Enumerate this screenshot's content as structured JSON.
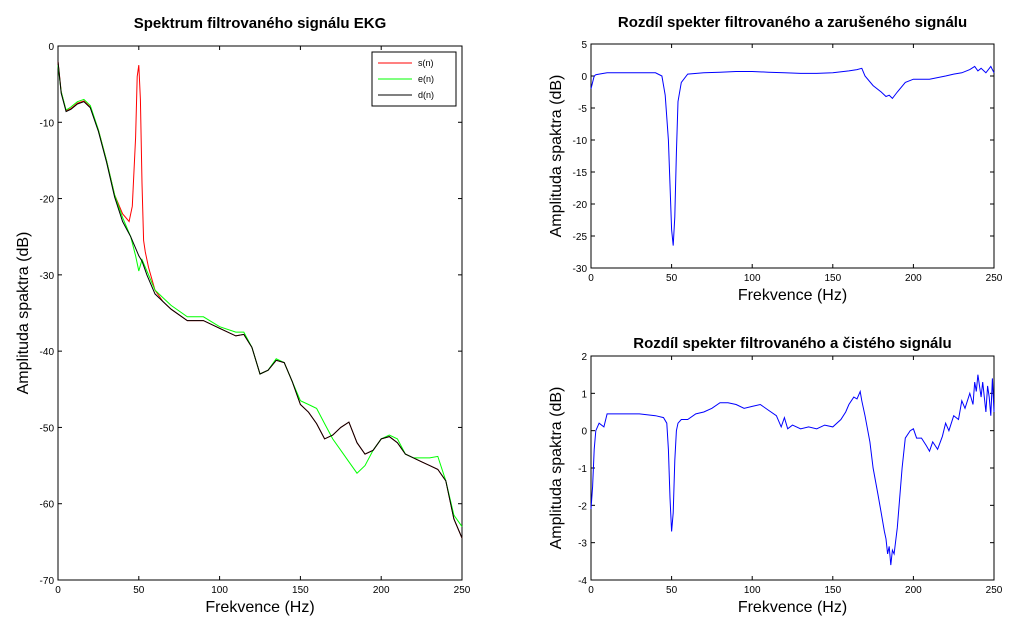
{
  "chart_data": [
    {
      "type": "line",
      "title": "Spektrum filtrovaného signálu EKG",
      "xlabel": "Frekvence (Hz)",
      "ylabel": "Amplituda spaktra (dB)",
      "xlim": [
        0,
        250
      ],
      "ylim": [
        -70,
        0
      ],
      "xticks": [
        0,
        50,
        100,
        150,
        200,
        250
      ],
      "yticks": [
        0,
        -10,
        -20,
        -30,
        -40,
        -50,
        -60,
        -70
      ],
      "grid": false,
      "legend": "top-right",
      "series": [
        {
          "name": "s(n)",
          "color": "#ff0000",
          "x": [
            0,
            2,
            5,
            8,
            12,
            16,
            20,
            25,
            30,
            35,
            40,
            44,
            46,
            48,
            49,
            50,
            51,
            52,
            53,
            54,
            56,
            60,
            65,
            70,
            80,
            90,
            100,
            110,
            115,
            120,
            125,
            130,
            135,
            140,
            145,
            150,
            155,
            160,
            165,
            170,
            175,
            180,
            185,
            190,
            195,
            200,
            205,
            210,
            215,
            220,
            225,
            230,
            235,
            240,
            245,
            250
          ],
          "values": [
            -2,
            -6,
            -8.5,
            -8.2,
            -7.5,
            -7.2,
            -8,
            -11,
            -15,
            -19.5,
            -22,
            -23,
            -21,
            -12,
            -4,
            -2.5,
            -7,
            -18,
            -25.5,
            -27,
            -29,
            -32,
            -33.5,
            -34.5,
            -36,
            -36,
            -37,
            -38,
            -37.8,
            -39.5,
            -43,
            -42.5,
            -41.2,
            -41.5,
            -44,
            -47,
            -48,
            -49.5,
            -51.5,
            -51,
            -50,
            -49.3,
            -52,
            -53.5,
            -53,
            -51.5,
            -51.2,
            -52,
            -53.5,
            -54,
            -54.5,
            -55,
            -55.5,
            -57,
            -62,
            -64.5
          ]
        },
        {
          "name": "e(n)",
          "color": "#00ff00",
          "x": [
            0,
            2,
            5,
            8,
            12,
            16,
            20,
            25,
            30,
            35,
            40,
            45,
            48,
            50,
            52,
            55,
            60,
            65,
            70,
            80,
            90,
            100,
            110,
            115,
            120,
            125,
            130,
            135,
            140,
            145,
            150,
            155,
            160,
            165,
            170,
            175,
            180,
            185,
            190,
            195,
            200,
            205,
            210,
            215,
            220,
            225,
            230,
            235,
            240,
            245,
            250
          ],
          "values": [
            -2.5,
            -6,
            -8.4,
            -8,
            -7.3,
            -7,
            -7.8,
            -11,
            -15,
            -19.5,
            -22.5,
            -25,
            -27.5,
            -29.5,
            -28,
            -29.5,
            -32,
            -33,
            -34,
            -35.5,
            -35.5,
            -36.8,
            -37.5,
            -37.5,
            -39.5,
            -43,
            -42.5,
            -41,
            -41.5,
            -44,
            -46.5,
            -47,
            -47.5,
            -49.5,
            -51.5,
            -53,
            -54.5,
            -56,
            -55,
            -53,
            -51.5,
            -51,
            -51.5,
            -53.5,
            -54,
            -54,
            -54,
            -53.8,
            -57,
            -61.5,
            -63
          ]
        },
        {
          "name": "d(n)",
          "color": "#000000",
          "x": [
            0,
            2,
            5,
            8,
            12,
            16,
            20,
            25,
            30,
            35,
            40,
            45,
            48,
            50,
            52,
            55,
            60,
            65,
            70,
            80,
            90,
            100,
            110,
            115,
            120,
            125,
            130,
            135,
            140,
            145,
            150,
            155,
            160,
            165,
            170,
            175,
            180,
            185,
            190,
            195,
            200,
            205,
            210,
            215,
            220,
            225,
            230,
            235,
            240,
            245,
            250
          ],
          "values": [
            -2,
            -6.2,
            -8.6,
            -8.3,
            -7.6,
            -7.3,
            -8.1,
            -11.2,
            -15.2,
            -19.8,
            -23,
            -25,
            -26.5,
            -27.5,
            -28.2,
            -30,
            -32.5,
            -33.5,
            -34.5,
            -36,
            -36,
            -37,
            -38,
            -37.8,
            -39.5,
            -43,
            -42.5,
            -41.2,
            -41.5,
            -44,
            -47,
            -48,
            -49.5,
            -51.5,
            -51,
            -50,
            -49.3,
            -52,
            -53.5,
            -53,
            -51.5,
            -51.2,
            -52,
            -53.5,
            -54,
            -54.5,
            -55,
            -55.5,
            -57,
            -62,
            -64.5
          ]
        }
      ]
    },
    {
      "type": "line",
      "title": "Rozdíl spekter filtrovaného a zarušeného signálu",
      "xlabel": "Frekvence (Hz)",
      "ylabel": "Amplituda spaktra (dB)",
      "xlim": [
        0,
        250
      ],
      "ylim": [
        -30,
        5
      ],
      "xticks": [
        0,
        50,
        100,
        150,
        200,
        250
      ],
      "yticks": [
        5,
        0,
        -5,
        -10,
        -15,
        -20,
        -25,
        -30
      ],
      "grid": false,
      "series": [
        {
          "color": "#0000ff",
          "x": [
            0,
            1,
            2,
            3,
            5,
            10,
            20,
            30,
            40,
            44,
            46,
            48,
            49,
            50,
            51,
            52,
            53,
            54,
            56,
            60,
            70,
            80,
            90,
            100,
            110,
            120,
            130,
            140,
            150,
            160,
            165,
            168,
            170,
            175,
            180,
            183,
            185,
            187,
            190,
            195,
            200,
            210,
            220,
            225,
            230,
            235,
            238,
            240,
            242,
            245,
            248,
            250
          ],
          "values": [
            -2,
            -1,
            0,
            0.2,
            0.3,
            0.5,
            0.5,
            0.5,
            0.5,
            0,
            -3,
            -10,
            -17,
            -24,
            -26.5,
            -22,
            -12,
            -4,
            -1,
            0.3,
            0.5,
            0.6,
            0.7,
            0.7,
            0.6,
            0.5,
            0.4,
            0.4,
            0.5,
            0.8,
            1,
            1.2,
            0,
            -1.5,
            -2.5,
            -3.2,
            -3,
            -3.5,
            -2.5,
            -1,
            -0.5,
            -0.5,
            0,
            0.3,
            0.5,
            1,
            1.5,
            0.8,
            1.2,
            0.5,
            1.5,
            0.5
          ]
        }
      ]
    },
    {
      "type": "line",
      "title": "Rozdíl spekter filtrovaného a čistého signálu",
      "xlabel": "Frekvence (Hz)",
      "ylabel": "Amplituda spaktra (dB)",
      "xlim": [
        0,
        250
      ],
      "ylim": [
        -4,
        2
      ],
      "xticks": [
        0,
        50,
        100,
        150,
        200,
        250
      ],
      "yticks": [
        2,
        1,
        0,
        -1,
        -2,
        -3,
        -4
      ],
      "grid": false,
      "series": [
        {
          "color": "#0000ff",
          "x": [
            0,
            1,
            2,
            3,
            5,
            8,
            10,
            20,
            30,
            40,
            45,
            47,
            48,
            49,
            50,
            51,
            52,
            53,
            54,
            56,
            60,
            65,
            70,
            75,
            80,
            85,
            90,
            95,
            100,
            105,
            110,
            115,
            118,
            120,
            122,
            125,
            130,
            135,
            140,
            145,
            150,
            155,
            158,
            160,
            163,
            165,
            167,
            168,
            170,
            173,
            175,
            178,
            180,
            182,
            183,
            184,
            185,
            186,
            187,
            188,
            190,
            193,
            195,
            198,
            200,
            202,
            205,
            208,
            210,
            212,
            215,
            218,
            220,
            222,
            225,
            228,
            230,
            232,
            235,
            237,
            238,
            239,
            240,
            241,
            242,
            243,
            245,
            246,
            247,
            248,
            249,
            250
          ],
          "values": [
            -2.1,
            -1.5,
            -0.5,
            0,
            0.2,
            0.1,
            0.45,
            0.45,
            0.45,
            0.4,
            0.35,
            0.2,
            -0.5,
            -1.8,
            -2.7,
            -2.2,
            -0.8,
            0,
            0.2,
            0.3,
            0.3,
            0.45,
            0.5,
            0.6,
            0.75,
            0.75,
            0.7,
            0.6,
            0.65,
            0.7,
            0.55,
            0.4,
            0.1,
            0.35,
            0.05,
            0.15,
            0.05,
            0.1,
            0.05,
            0.15,
            0.1,
            0.3,
            0.5,
            0.7,
            0.9,
            0.85,
            1.05,
            0.8,
            0.4,
            -0.3,
            -1,
            -1.7,
            -2.2,
            -2.7,
            -2.9,
            -3.3,
            -3.1,
            -3.6,
            -3.2,
            -3.3,
            -2.6,
            -1,
            -0.2,
            0,
            0.05,
            -0.2,
            -0.2,
            -0.4,
            -0.55,
            -0.3,
            -0.5,
            -0.15,
            0.2,
            0,
            0.4,
            0.3,
            0.8,
            0.6,
            1.0,
            0.7,
            1.3,
            1.05,
            1.5,
            1.2,
            0.9,
            1.3,
            0.5,
            1.2,
            0.9,
            0.4,
            1.4,
            0.5
          ]
        }
      ]
    }
  ]
}
